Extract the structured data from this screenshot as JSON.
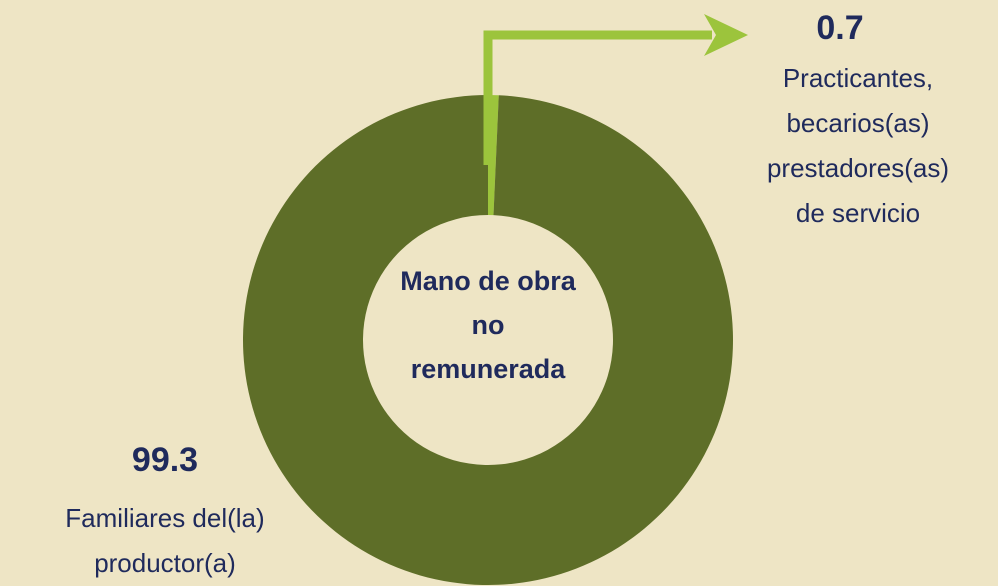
{
  "chart_data": {
    "type": "donut",
    "center_label": "Mano de obra\nno\nremunerada",
    "categories": [
      "Practicantes,\nbecarios(as)\nprestadores(as)\nde servicio",
      "Familiares del(la)\nproductor(a)"
    ],
    "values": [
      0.7,
      99.3
    ],
    "colors": [
      "#9cc43c",
      "#5e6e28"
    ]
  }
}
